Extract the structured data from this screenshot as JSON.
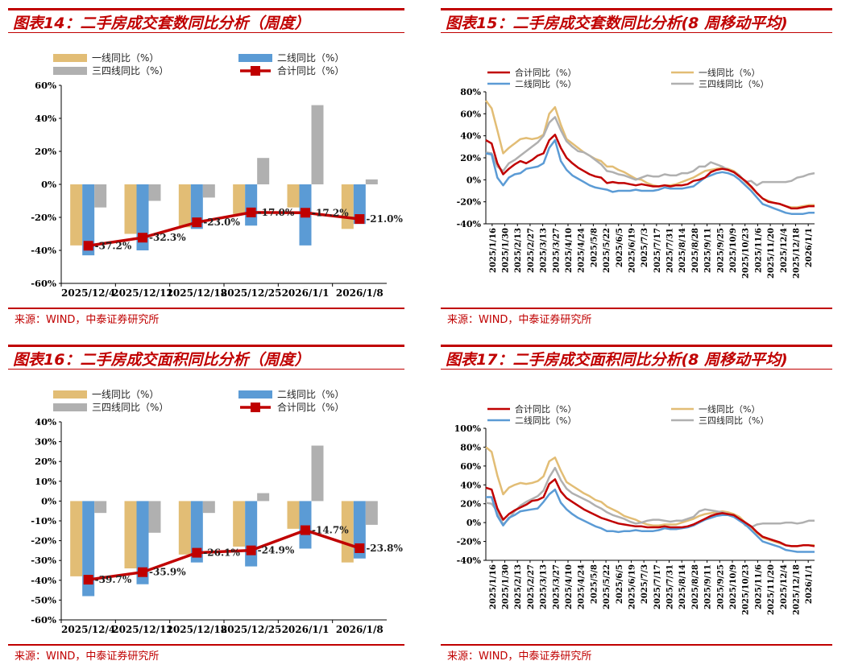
{
  "colors": {
    "first": "#e2bd75",
    "second": "#5b9bd5",
    "third": "#b0b0b0",
    "total": "#c00000",
    "title": "#c00000"
  },
  "panels": [
    {
      "title": "图表14：二手房成交套数同比分析（周度）",
      "source": "来源：WIND，中泰证券研究所"
    },
    {
      "title": "图表15：二手房成交套数同比分析(8 周移动平均)",
      "source": "来源：WIND，中泰证券研究所"
    },
    {
      "title": "图表16：二手房成交面积同比分析（周度）",
      "source": "来源：WIND，中泰证券研究所"
    },
    {
      "title": "图表17：二手房成交面积同比分析(8 周移动平均)",
      "source": "来源：WIND，中泰证券研究所"
    }
  ],
  "chart_data": [
    {
      "type": "bar",
      "title": "图表14：二手房成交套数同比分析（周度）",
      "legend": [
        "一线同比（%）",
        "二线同比（%）",
        "三四线同比（%）",
        "合计同比（%）"
      ],
      "categories": [
        "2025/12/4",
        "2025/12/11",
        "2025/12/18",
        "2025/12/25",
        "2026/1/1",
        "2026/1/8"
      ],
      "ylim": [
        -60,
        60
      ],
      "yticks": [
        -60,
        -40,
        -20,
        0,
        20,
        40,
        60
      ],
      "ytick_labels": [
        "-60%",
        "-40%",
        "-20%",
        "0%",
        "20%",
        "40%",
        "60%"
      ],
      "series": [
        {
          "name": "一线同比（%）",
          "values": [
            -37,
            -30,
            -26,
            -18,
            -14,
            -27
          ]
        },
        {
          "name": "二线同比（%）",
          "values": [
            -43,
            -40,
            -27,
            -25,
            -37,
            -24
          ]
        },
        {
          "name": "三四线同比（%）",
          "values": [
            -14,
            -10,
            -8,
            16,
            48,
            3
          ]
        },
        {
          "name": "合计同比（%）",
          "line": true,
          "values": [
            -37.2,
            -32.3,
            -23.0,
            -17.0,
            -17.2,
            -21.0
          ]
        }
      ],
      "data_labels": [
        "-37.2%",
        "-32.3%",
        "-23.0%",
        "-17.0%",
        "-17.2%",
        "-21.0%"
      ]
    },
    {
      "type": "line",
      "title": "图表15：二手房成交套数同比分析(8 周移动平均)",
      "legend": [
        "合计同比（%）",
        "一线同比（%）",
        "二线同比（%）",
        "三四线同比（%）"
      ],
      "x_labels": [
        "2025/1/16",
        "2025/1/30",
        "2025/2/13",
        "2025/2/27",
        "2025/3/13",
        "2025/3/27",
        "2025/4/10",
        "2025/4/24",
        "2025/5/8",
        "2025/5/22",
        "2025/6/5",
        "2025/6/19",
        "2025/7/3",
        "2025/7/17",
        "2025/7/31",
        "2025/8/14",
        "2025/8/28",
        "2025/9/11",
        "2025/9/25",
        "2025/10/9",
        "2025/10/23",
        "2025/11/6",
        "2025/11/20",
        "2025/12/4",
        "2025/12/18",
        "2026/1/1"
      ],
      "ylim": [
        -40,
        80
      ],
      "yticks": [
        -40,
        -20,
        0,
        20,
        40,
        60,
        80
      ],
      "ytick_labels": [
        "-40%",
        "-20%",
        "0%",
        "20%",
        "40%",
        "60%",
        "80%"
      ],
      "series": [
        {
          "name": "合计同比（%）",
          "values": [
            36,
            33,
            15,
            5,
            10,
            14,
            17,
            15,
            18,
            22,
            24,
            36,
            41,
            29,
            20,
            15,
            11,
            8,
            5,
            3,
            2,
            -3,
            -2,
            -3,
            -3,
            -4,
            -5,
            -4,
            -5,
            -6,
            -6,
            -5,
            -6,
            -5,
            -5,
            -4,
            -1,
            0,
            2,
            7,
            9,
            10,
            9,
            7,
            3,
            -1,
            -6,
            -12,
            -17,
            -20,
            -21,
            -22,
            -24,
            -26,
            -26,
            -25,
            -24,
            -24
          ]
        },
        {
          "name": "一线同比（%）",
          "values": [
            72,
            65,
            45,
            24,
            29,
            33,
            37,
            38,
            37,
            38,
            41,
            60,
            66,
            50,
            37,
            33,
            29,
            25,
            22,
            19,
            17,
            12,
            12,
            9,
            7,
            4,
            1,
            0,
            -3,
            -5,
            -6,
            -5,
            -5,
            -4,
            -2,
            0,
            2,
            5,
            8,
            9,
            10,
            11,
            10,
            8,
            4,
            -2,
            -7,
            -12,
            -17,
            -19,
            -21,
            -22,
            -24,
            -25,
            -25,
            -24,
            -23,
            -23
          ]
        },
        {
          "name": "二线同比（%）",
          "values": [
            24,
            23,
            2,
            -5,
            2,
            5,
            6,
            10,
            11,
            12,
            15,
            29,
            36,
            17,
            9,
            4,
            1,
            -2,
            -5,
            -7,
            -8,
            -9,
            -11,
            -10,
            -10,
            -10,
            -9,
            -10,
            -10,
            -10,
            -9,
            -7,
            -8,
            -8,
            -8,
            -7,
            -6,
            -2,
            2,
            4,
            6,
            7,
            6,
            4,
            0,
            -5,
            -10,
            -16,
            -22,
            -24,
            -26,
            -28,
            -30,
            -31,
            -31,
            -31,
            -30,
            -30
          ]
        },
        {
          "name": "三四线同比（%）",
          "values": [
            25,
            24,
            12,
            8,
            15,
            18,
            22,
            26,
            30,
            34,
            40,
            52,
            57,
            45,
            35,
            30,
            26,
            25,
            22,
            18,
            14,
            8,
            7,
            5,
            4,
            2,
            0,
            2,
            4,
            3,
            3,
            5,
            4,
            4,
            6,
            6,
            8,
            12,
            12,
            16,
            14,
            12,
            9,
            7,
            4,
            -2,
            -1,
            -5,
            -2,
            -2,
            -2,
            -2,
            -2,
            -1,
            2,
            3,
            5,
            6
          ]
        }
      ]
    },
    {
      "type": "bar",
      "title": "图表16：二手房成交面积同比分析（周度）",
      "legend": [
        "一线同比（%）",
        "二线同比（%）",
        "三四线同比（%）",
        "合计同比（%）"
      ],
      "categories": [
        "2025/12/4",
        "2025/12/11",
        "2025/12/18",
        "2025/12/25",
        "2026/1/1",
        "2026/1/8"
      ],
      "ylim": [
        -60,
        40
      ],
      "yticks": [
        -60,
        -50,
        -40,
        -30,
        -20,
        -10,
        0,
        10,
        20,
        30,
        40
      ],
      "ytick_labels": [
        "-60%",
        "-50%",
        "-40%",
        "-30%",
        "-20%",
        "-10%",
        "0%",
        "10%",
        "20%",
        "30%",
        "40%"
      ],
      "series": [
        {
          "name": "一线同比（%）",
          "values": [
            -38,
            -34,
            -27,
            -23,
            -14,
            -31
          ]
        },
        {
          "name": "二线同比（%）",
          "values": [
            -48,
            -42,
            -31,
            -33,
            -24,
            -29
          ]
        },
        {
          "name": "三四线同比（%）",
          "values": [
            -6,
            -16,
            -6,
            4,
            28,
            -12
          ]
        },
        {
          "name": "合计同比（%）",
          "line": true,
          "values": [
            -39.7,
            -35.9,
            -26.1,
            -24.9,
            -14.7,
            -23.8
          ]
        }
      ],
      "data_labels": [
        "-39.7%",
        "-35.9%",
        "-26.1%",
        "-24.9%",
        "-14.7%",
        "-23.8%"
      ]
    },
    {
      "type": "line",
      "title": "图表17：二手房成交面积同比分析(8 周移动平均)",
      "legend": [
        "合计同比（%）",
        "一线同比（%）",
        "二线同比（%）",
        "三四线同比（%）"
      ],
      "x_labels": [
        "2025/1/16",
        "2025/1/30",
        "2025/2/13",
        "2025/2/27",
        "2025/3/13",
        "2025/3/27",
        "2025/4/10",
        "2025/4/24",
        "2025/5/8",
        "2025/5/22",
        "2025/6/5",
        "2025/6/19",
        "2025/7/3",
        "2025/7/17",
        "2025/7/31",
        "2025/8/14",
        "2025/8/28",
        "2025/9/11",
        "2025/9/25",
        "2025/10/9",
        "2025/10/23",
        "2025/11/6",
        "2025/11/20",
        "2025/12/4",
        "2025/12/18",
        "2026/1/1"
      ],
      "ylim": [
        -40,
        100
      ],
      "yticks": [
        -40,
        -20,
        0,
        20,
        40,
        60,
        80,
        100
      ],
      "ytick_labels": [
        "-40%",
        "-20%",
        "0%",
        "20%",
        "40%",
        "60%",
        "80%",
        "100%"
      ],
      "series": [
        {
          "name": "合计同比（%）",
          "values": [
            37,
            35,
            15,
            3,
            9,
            13,
            16,
            19,
            23,
            24,
            27,
            41,
            46,
            33,
            26,
            22,
            18,
            14,
            11,
            8,
            5,
            3,
            1,
            -1,
            -2,
            -3,
            -4,
            -4,
            -5,
            -5,
            -5,
            -4,
            -5,
            -5,
            -5,
            -4,
            -2,
            1,
            4,
            7,
            9,
            10,
            9,
            8,
            4,
            0,
            -4,
            -10,
            -15,
            -17,
            -19,
            -21,
            -24,
            -25,
            -25,
            -24,
            -24,
            -25
          ]
        },
        {
          "name": "一线同比（%）",
          "values": [
            80,
            75,
            50,
            30,
            37,
            40,
            42,
            41,
            42,
            44,
            49,
            65,
            69,
            55,
            43,
            39,
            35,
            31,
            28,
            24,
            22,
            17,
            14,
            11,
            7,
            5,
            3,
            0,
            -2,
            -3,
            -3,
            -2,
            -2,
            -2,
            0,
            2,
            4,
            7,
            9,
            10,
            11,
            12,
            11,
            9,
            6,
            0,
            -5,
            -11,
            -16,
            -18,
            -20,
            -22,
            -24,
            -25,
            -25,
            -24,
            -24,
            -24
          ]
        },
        {
          "name": "二线同比（%）",
          "values": [
            27,
            27,
            7,
            -3,
            5,
            8,
            12,
            13,
            14,
            15,
            22,
            30,
            35,
            21,
            14,
            9,
            5,
            2,
            -1,
            -4,
            -6,
            -9,
            -9,
            -10,
            -9,
            -9,
            -8,
            -9,
            -9,
            -9,
            -8,
            -6,
            -7,
            -7,
            -6,
            -5,
            -3,
            0,
            3,
            5,
            7,
            8,
            8,
            6,
            2,
            -2,
            -8,
            -14,
            -20,
            -22,
            -24,
            -26,
            -29,
            -30,
            -31,
            -31,
            -31,
            -31
          ]
        },
        {
          "name": "三四线同比（%）",
          "values": [
            21,
            20,
            12,
            -2,
            4,
            12,
            18,
            22,
            25,
            28,
            34,
            48,
            58,
            45,
            36,
            31,
            28,
            25,
            22,
            18,
            15,
            11,
            8,
            6,
            4,
            1,
            -1,
            0,
            2,
            3,
            3,
            2,
            1,
            2,
            2,
            4,
            6,
            12,
            14,
            13,
            12,
            11,
            9,
            7,
            4,
            -3,
            -5,
            -2,
            -1,
            -1,
            -1,
            -1,
            0,
            0,
            -1,
            0,
            2,
            2
          ]
        }
      ]
    }
  ]
}
